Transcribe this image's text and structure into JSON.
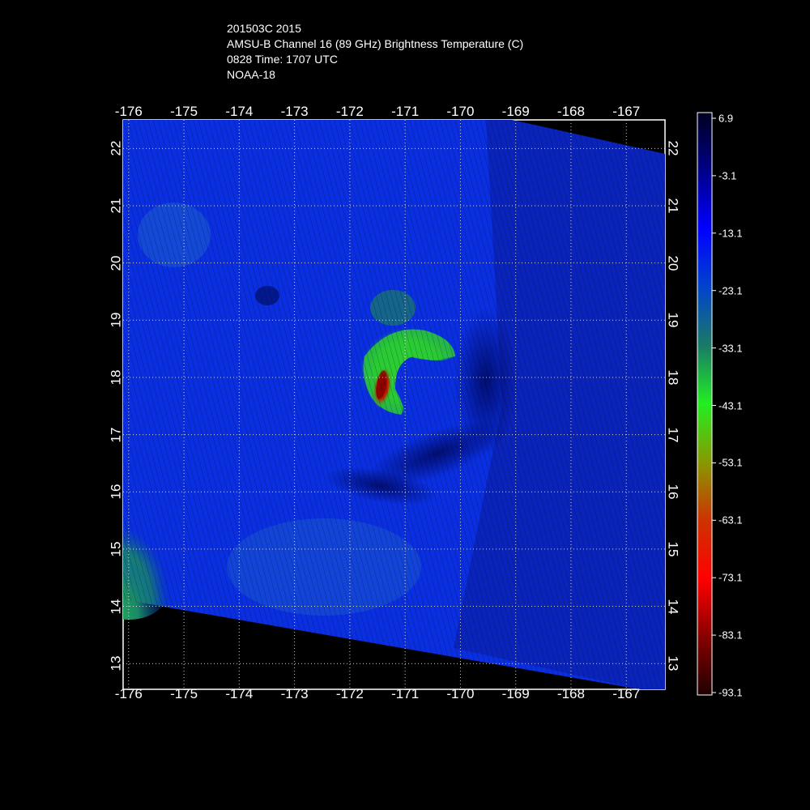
{
  "title": {
    "line1": "201503C 2015",
    "line2": "AMSU-B Channel 16 (89 GHz) Brightness Temperature (C)",
    "line3": "0828 Time: 1707 UTC",
    "line4": "NOAA-18"
  },
  "axes": {
    "lon_ticks": [
      "-176",
      "-175",
      "-174",
      "-173",
      "-172",
      "-171",
      "-170",
      "-169",
      "-168",
      "-167"
    ],
    "lat_ticks": [
      "13",
      "14",
      "15",
      "16",
      "17",
      "18",
      "19",
      "20",
      "21",
      "22"
    ],
    "lon_range": [
      -176.1,
      -166.3
    ],
    "lat_range": [
      12.55,
      22.5
    ],
    "grid": "dotted"
  },
  "colorbar": {
    "labels": [
      "6.9",
      "-3.1",
      "-13.1",
      "-23.1",
      "-33.1",
      "-43.1",
      "-53.1",
      "-63.1",
      "-73.1",
      "-83.1",
      "-93.1"
    ],
    "colors": [
      "#000022",
      "#000088",
      "#0000ff",
      "#0044cc",
      "#1a7a66",
      "#22ee22",
      "#889900",
      "#cc3300",
      "#ff0000",
      "#880000",
      "#200000"
    ]
  },
  "storm": {
    "center_lon": -171.4,
    "center_lat": 17.9
  }
}
